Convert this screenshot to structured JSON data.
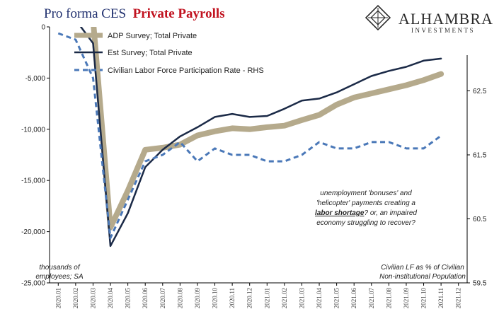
{
  "title": {
    "plain": "Pro forma CES",
    "highlight": "Private Payrolls"
  },
  "logo": {
    "name": "ALHAMBRA",
    "sub": "INVESTMENTS"
  },
  "annotation": {
    "line1": "unemployment 'bonuses' and",
    "line2": "'helicopter' payments creating a",
    "line3_bold": "labor shortage",
    "line3_rest": "? or, an impaired",
    "line4": "economy struggling to recover?"
  },
  "left_note": {
    "line1": "thousands of",
    "line2": "employees; SA"
  },
  "right_note": {
    "line1": "Civilian LF as % of Civilian",
    "line2": "Non-institutional Population"
  },
  "colors": {
    "adp": "#b5aa8c",
    "est": "#1b2a47",
    "lfpr": "#4a78b8",
    "title_blue": "#1f2f6e",
    "title_red": "#c1121f"
  },
  "chart_data": {
    "type": "line",
    "categories": [
      "2020.01",
      "2020.02",
      "2020.03",
      "2020.04",
      "2020.05",
      "2020.06",
      "2020.07",
      "2020.08",
      "2020.09",
      "2020.10",
      "2020.11",
      "2020.12",
      "2021.01",
      "2021.02",
      "2021.03",
      "2021.04",
      "2021.05",
      "2021.06",
      "2021.07",
      "2021.08",
      "2021.09",
      "2021.10",
      "2021.11",
      "2021.12"
    ],
    "y_left": {
      "min": -25000,
      "max": 0,
      "ticks": [
        0,
        -5000,
        -10000,
        -15000,
        -20000,
        -25000
      ],
      "tick_labels": [
        "0",
        "-5,000",
        "-10,000",
        "-15,000",
        "-20,000",
        "-25,000"
      ]
    },
    "y_right": {
      "min": 59.5,
      "max": 63.5,
      "ticks": [
        62.5,
        61.5,
        60.5,
        59.5
      ],
      "tick_labels": [
        "62.5",
        "61.5",
        "60.5",
        "59.5"
      ]
    },
    "series": [
      {
        "name": "ADP Survey; Total Private",
        "axis": "left",
        "values": [
          null,
          0,
          0,
          -19600,
          -16000,
          -12000,
          -11800,
          -11500,
          -10600,
          -10200,
          -9900,
          -10000,
          -9800,
          -9650,
          -9100,
          -8600,
          -7600,
          -6900,
          -6500,
          -6100,
          -5700,
          -5200,
          -4600,
          null
        ]
      },
      {
        "name": "Est Survey; Total Private",
        "axis": "left",
        "values": [
          null,
          0,
          -1600,
          -21400,
          -18200,
          -13700,
          -12000,
          -10700,
          -9800,
          -8800,
          -8500,
          -8800,
          -8700,
          -8000,
          -7200,
          -7000,
          -6400,
          -5600,
          -4800,
          -4300,
          -3900,
          -3300,
          -3100,
          null
        ]
      },
      {
        "name": "Civilian Labor Force Participation Rate - RHS",
        "axis": "right",
        "style": "dashed",
        "values": [
          63.4,
          63.3,
          62.7,
          60.2,
          60.8,
          61.4,
          61.5,
          61.7,
          61.4,
          61.6,
          61.5,
          61.5,
          61.4,
          61.4,
          61.5,
          61.7,
          61.6,
          61.6,
          61.7,
          61.7,
          61.6,
          61.6,
          61.8,
          null
        ]
      }
    ]
  }
}
